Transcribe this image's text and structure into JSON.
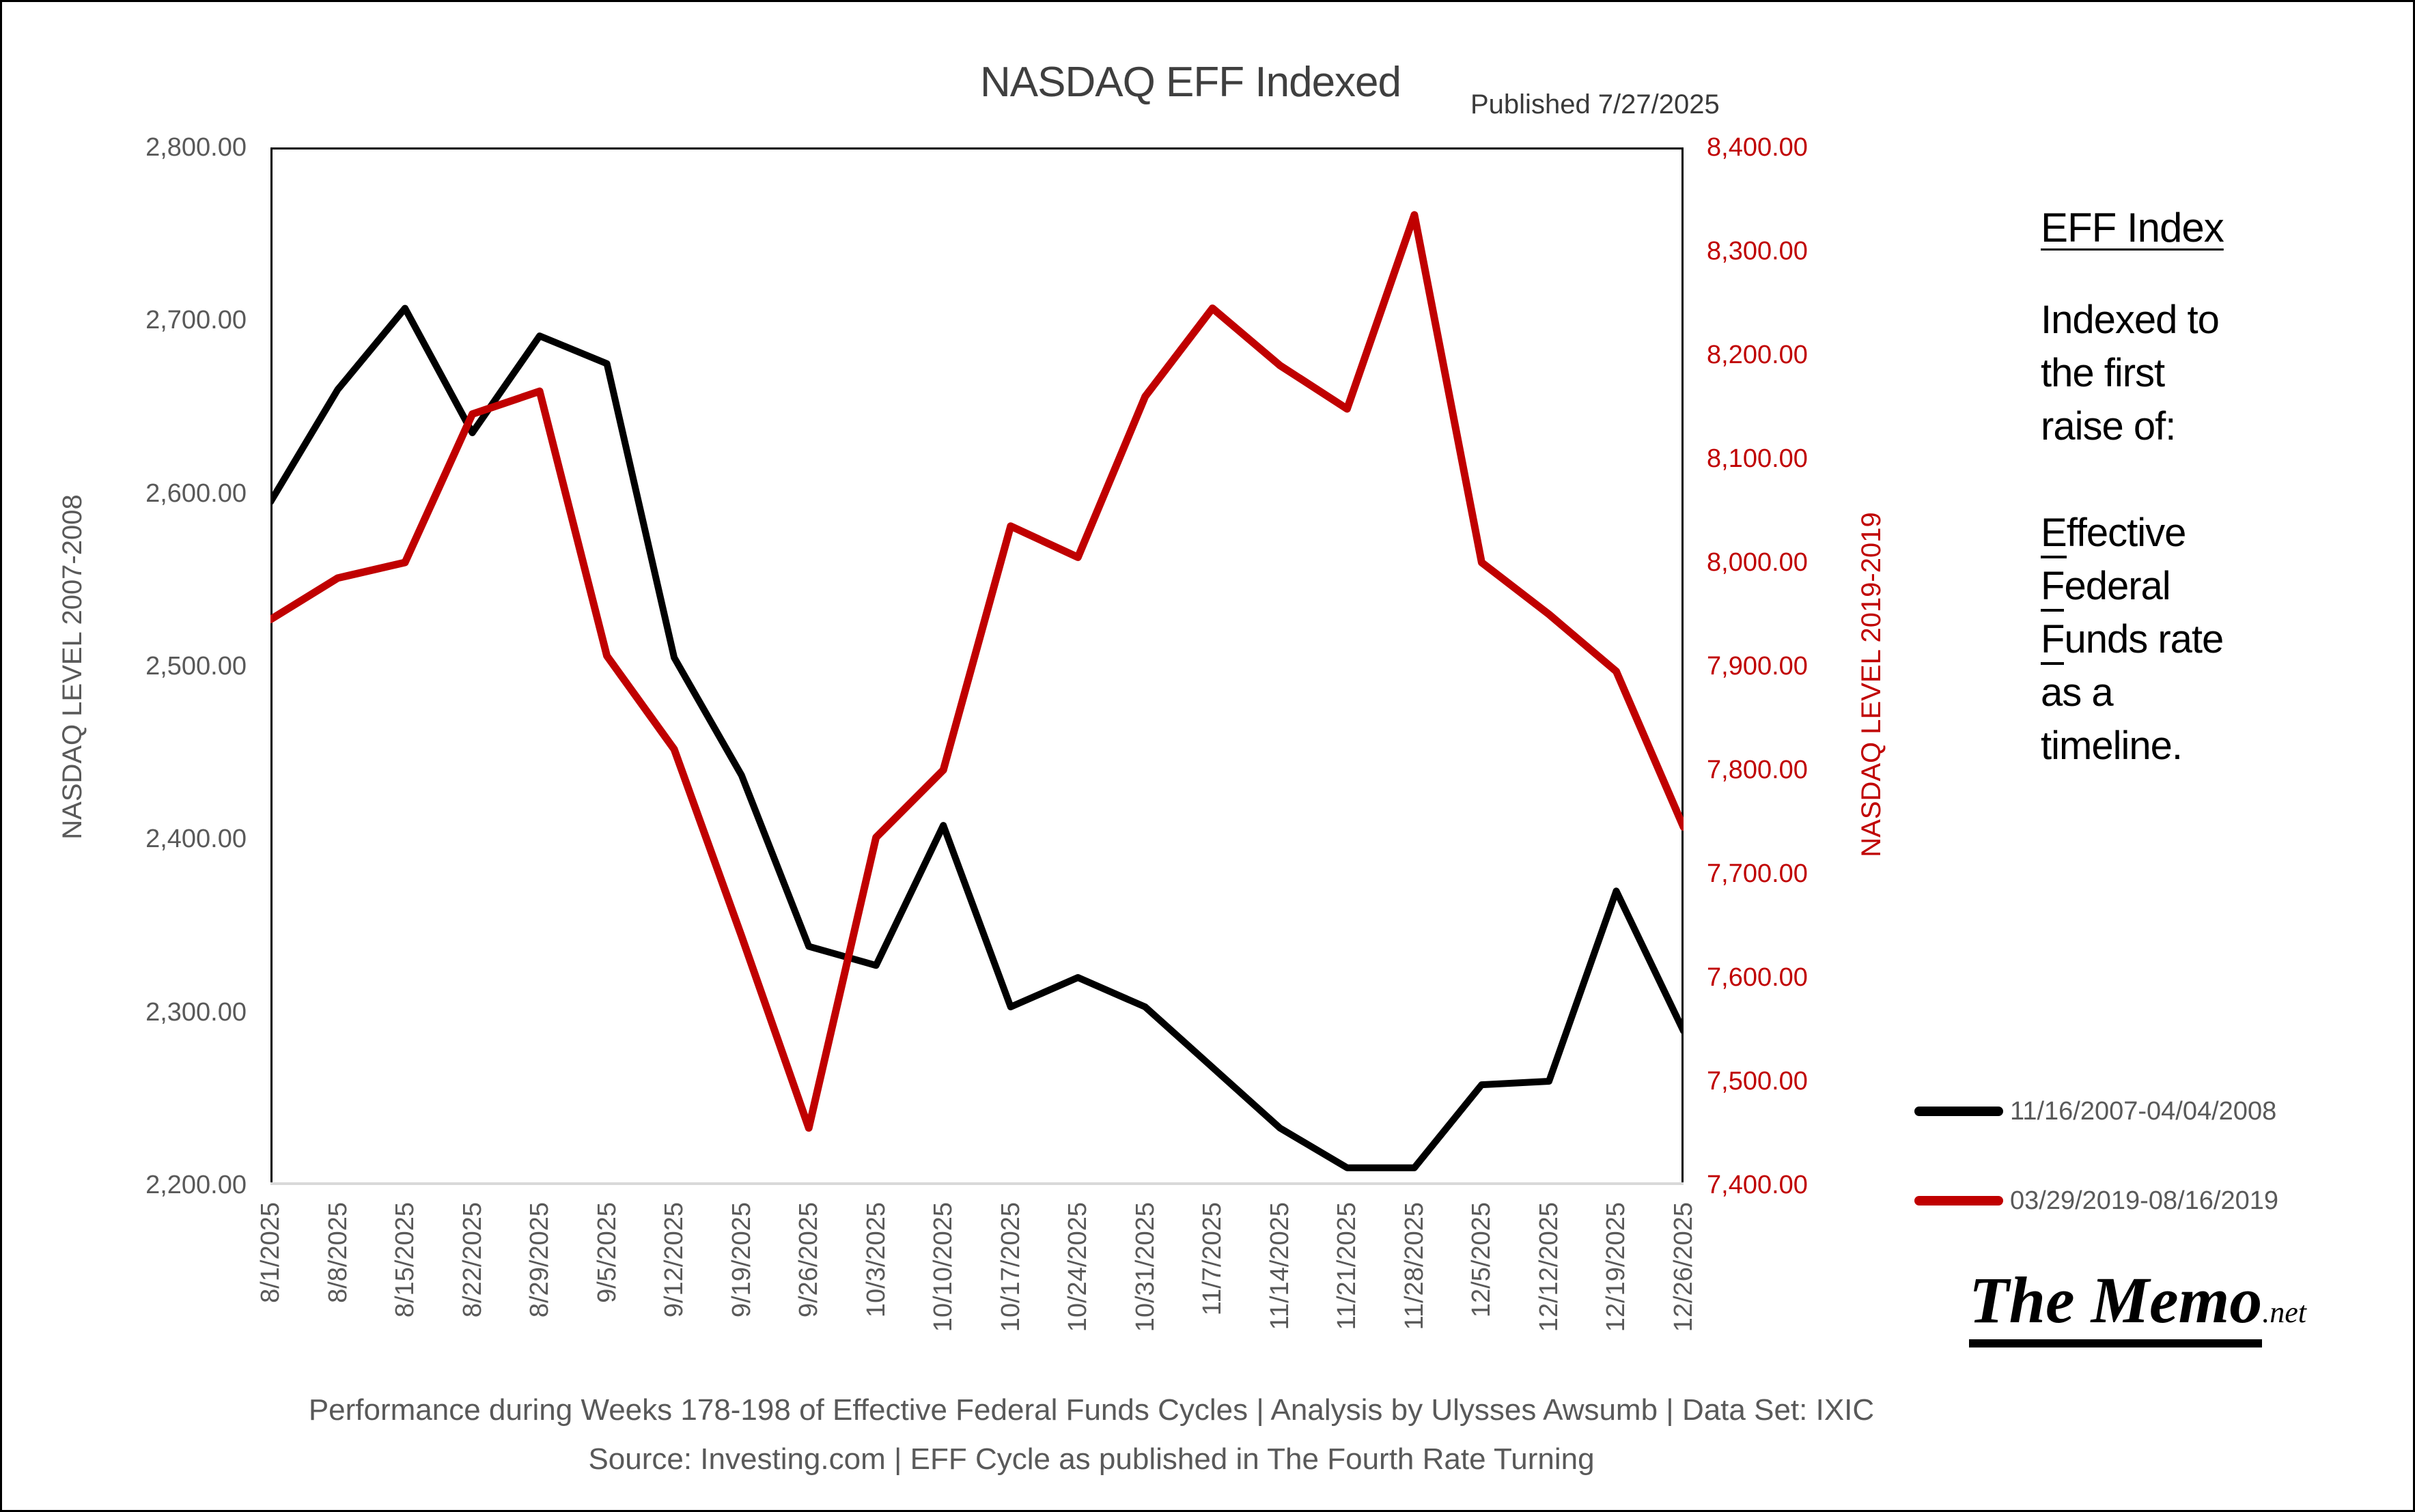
{
  "title": "NASDAQ EFF Indexed",
  "published": "Published 7/27/2025",
  "side_panel": {
    "heading": "EFF Index",
    "para1_lines": [
      "Indexed to",
      "the first",
      "raise of:"
    ],
    "para2_lines": [
      {
        "text": "Effective",
        "underline_first": true
      },
      {
        "text": "Federal",
        "underline_first": true
      },
      {
        "text": "Funds rate",
        "underline_first": true
      },
      {
        "text": "as a",
        "underline_first": false
      },
      {
        "text": "timeline.",
        "underline_first": false
      }
    ]
  },
  "legend": [
    {
      "label": "11/16/2007-04/04/2008",
      "color": "#000000"
    },
    {
      "label": "03/29/2019-08/16/2019",
      "color": "#c00000"
    }
  ],
  "brand": {
    "name": "The Memo",
    "suffix": ".net"
  },
  "captions": [
    "Performance during Weeks 178-198 of Effective Federal Funds Cycles | Analysis by Ulysses Awsumb | Data Set: IXIC",
    "Source: Investing.com | EFF Cycle as published in The Fourth Rate Turning"
  ],
  "colors": {
    "series_2007": "#000000",
    "series_2019": "#c00000",
    "axis_text": "#595959",
    "title_text": "#3f3f3f",
    "plot_border": "#000000",
    "bottom_axis_line": "#d9d9d9"
  },
  "chart_data": {
    "type": "line",
    "title": "NASDAQ EFF Indexed",
    "x": [
      "8/1/2025",
      "8/8/2025",
      "8/15/2025",
      "8/22/2025",
      "8/29/2025",
      "9/5/2025",
      "9/12/2025",
      "9/19/2025",
      "9/26/2025",
      "10/3/2025",
      "10/10/2025",
      "10/17/2025",
      "10/24/2025",
      "10/31/2025",
      "11/7/2025",
      "11/14/2025",
      "11/21/2025",
      "11/28/2025",
      "12/5/2025",
      "12/12/2025",
      "12/19/2025",
      "12/26/2025"
    ],
    "series": [
      {
        "name": "11/16/2007-04/04/2008",
        "axis": "left",
        "color": "#000000",
        "stroke_width": 10,
        "values": [
          2595,
          2660,
          2707,
          2635,
          2691,
          2675,
          2505,
          2437,
          2338,
          2327,
          2408,
          2303,
          2320,
          2303,
          2268,
          2233,
          2210,
          2210,
          2258,
          2260,
          2370,
          2289
        ]
      },
      {
        "name": "03/29/2019-08/16/2019",
        "axis": "right",
        "color": "#c00000",
        "stroke_width": 11,
        "values": [
          7945,
          7985,
          8000,
          8143,
          8165,
          7910,
          7820,
          7640,
          7455,
          7735,
          7800,
          8035,
          8005,
          8160,
          8245,
          8190,
          8148,
          8335,
          8000,
          7950,
          7895,
          7745
        ]
      }
    ],
    "left_axis": {
      "title": "NASDAQ LEVEL 2007-2008",
      "min": 2200,
      "max": 2800,
      "step": 100,
      "ticks": [
        "2,200.00",
        "2,300.00",
        "2,400.00",
        "2,500.00",
        "2,600.00",
        "2,700.00",
        "2,800.00"
      ]
    },
    "right_axis": {
      "title": "NASDAQ LEVEL 2019-2019",
      "min": 7400,
      "max": 8400,
      "step": 100,
      "ticks": [
        "7,400.00",
        "7,500.00",
        "7,600.00",
        "7,700.00",
        "7,800.00",
        "7,900.00",
        "8,000.00",
        "8,100.00",
        "8,200.00",
        "8,300.00",
        "8,400.00"
      ]
    },
    "grid": false,
    "legend_position": "right-bottom"
  }
}
